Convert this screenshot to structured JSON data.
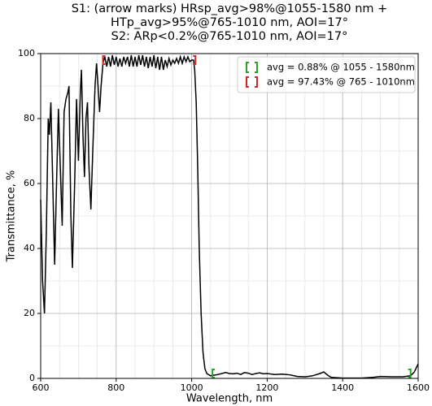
{
  "chart_data": {
    "type": "line",
    "title": [
      "S1: (arrow marks) HRsp_avg>98%@1055-1580 nm +",
      "HTp_avg>95%@765-1010 nm, AOI=17°",
      "S2: ARp<0.2%@765-1010 nm, AOI=17°"
    ],
    "x_label": "Wavelength, nm",
    "y_label": "Transmittance, %",
    "xlim": [
      600,
      1600
    ],
    "ylim": [
      0,
      100
    ],
    "xticks": [
      600,
      800,
      1000,
      1200,
      1400,
      1600
    ],
    "yticks": [
      0,
      20,
      40,
      60,
      80,
      100
    ],
    "xminorticks": [
      650,
      700,
      750,
      850,
      900,
      950,
      1050,
      1100,
      1150,
      1250,
      1300,
      1350,
      1450,
      1500,
      1550
    ],
    "yminorticks": [
      10,
      30,
      50,
      70,
      90
    ],
    "grid": true,
    "x": [
      600,
      605,
      610,
      615,
      620,
      623,
      627,
      632,
      637,
      642,
      647,
      652,
      657,
      662,
      667,
      672,
      675,
      680,
      684,
      690,
      695,
      700,
      705,
      708,
      712,
      716,
      720,
      724,
      728,
      733,
      738,
      744,
      748,
      752,
      756,
      760,
      765,
      770,
      775,
      780,
      785,
      790,
      795,
      800,
      805,
      810,
      815,
      820,
      825,
      830,
      835,
      840,
      845,
      850,
      855,
      860,
      865,
      870,
      875,
      880,
      885,
      890,
      895,
      900,
      905,
      910,
      915,
      920,
      925,
      930,
      935,
      940,
      945,
      950,
      955,
      960,
      965,
      970,
      975,
      980,
      985,
      990,
      995,
      1000,
      1005,
      1008,
      1012,
      1016,
      1020,
      1025,
      1030,
      1035,
      1040,
      1050,
      1060,
      1070,
      1080,
      1090,
      1100,
      1110,
      1120,
      1130,
      1140,
      1150,
      1160,
      1170,
      1180,
      1190,
      1200,
      1220,
      1240,
      1260,
      1280,
      1300,
      1320,
      1340,
      1350,
      1360,
      1370,
      1400,
      1450,
      1480,
      1500,
      1530,
      1560,
      1580,
      1590,
      1600
    ],
    "series": [
      {
        "color": "#000000",
        "values": [
          55,
          30,
          20,
          45,
          80,
          75,
          85,
          60,
          35,
          60,
          83,
          65,
          47,
          82,
          86,
          88,
          90,
          50,
          34,
          60,
          86,
          67,
          88,
          95,
          75,
          62,
          80,
          85,
          65,
          52,
          70,
          90,
          97,
          90,
          82,
          90,
          97,
          99,
          96,
          99,
          96,
          99.5,
          96.5,
          99,
          96,
          98.5,
          96,
          99,
          97,
          99,
          96,
          99.5,
          96,
          99,
          96,
          99.5,
          96.5,
          99.5,
          96,
          99,
          95.5,
          99,
          96,
          99.5,
          95.5,
          99,
          95,
          99,
          95,
          98,
          96,
          98.5,
          96.5,
          98,
          97,
          98.5,
          97,
          99,
          97,
          99,
          97.5,
          99,
          97.5,
          98,
          98,
          95,
          85,
          65,
          40,
          20,
          8,
          3,
          1.5,
          0.8,
          1,
          1.2,
          1.5,
          1.8,
          1.5,
          1.4,
          1.6,
          1.2,
          1.8,
          1.6,
          1.2,
          1.5,
          1.7,
          1.4,
          1.5,
          1.2,
          1.3,
          1.1,
          0.6,
          0.5,
          0.8,
          1.5,
          2,
          1,
          0.3,
          0.1,
          0.1,
          0.3,
          0.6,
          0.5,
          0.5,
          0.8,
          2,
          4.5
        ]
      }
    ],
    "legend_position": "upper right",
    "ranges": [
      {
        "label": "avg = 0.88% @ 1055 - 1580nm",
        "color": "#2ca02c",
        "range": [
          1055,
          1580
        ],
        "level": 1.5
      },
      {
        "label": "avg = 97.43% @ 765 - 1010nm",
        "color": "#d62728",
        "range": [
          765,
          1010
        ],
        "level": 98
      }
    ]
  }
}
